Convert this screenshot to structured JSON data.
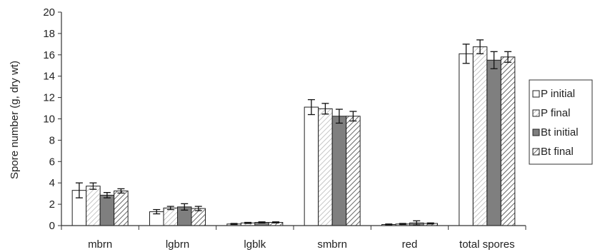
{
  "chart_data": {
    "type": "bar",
    "title": "",
    "xlabel": "",
    "ylabel": "Spore number (g, dry wt)",
    "ylim": [
      0,
      20
    ],
    "yticks": [
      0,
      2,
      4,
      6,
      8,
      10,
      12,
      14,
      16,
      18,
      20
    ],
    "categories": [
      "mbrn",
      "lgbrn",
      "lgblk",
      "smbrn",
      "red",
      "total spores"
    ],
    "grid": false,
    "legend_position": "right",
    "series": [
      {
        "name": "P initial",
        "fill": "#ffffff",
        "pattern": "none",
        "values": [
          3.3,
          1.3,
          0.15,
          11.1,
          0.1,
          16.1
        ],
        "errors": [
          0.7,
          0.2,
          0.05,
          0.7,
          0.05,
          0.9
        ]
      },
      {
        "name": "P final",
        "fill": "#ffffff",
        "pattern": "light-hatch",
        "values": [
          3.7,
          1.65,
          0.25,
          10.95,
          0.15,
          16.75
        ],
        "errors": [
          0.3,
          0.15,
          0.05,
          0.5,
          0.05,
          0.65
        ]
      },
      {
        "name": "Bt initial",
        "fill": "#7f7f7f",
        "pattern": "none",
        "values": [
          2.85,
          1.75,
          0.3,
          10.25,
          0.25,
          15.5
        ],
        "errors": [
          0.25,
          0.3,
          0.05,
          0.65,
          0.2,
          0.8
        ]
      },
      {
        "name": "Bt final",
        "fill": "#ffffff",
        "pattern": "dense-hatch",
        "values": [
          3.25,
          1.6,
          0.3,
          10.25,
          0.2,
          15.8
        ],
        "errors": [
          0.2,
          0.2,
          0.05,
          0.45,
          0.05,
          0.5
        ]
      }
    ]
  }
}
